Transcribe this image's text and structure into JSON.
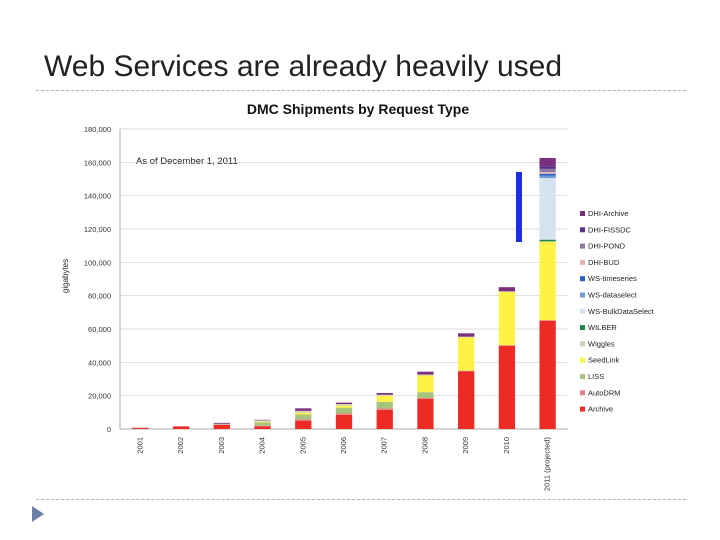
{
  "slide": {
    "title": "Web Services are already heavily used"
  },
  "chart_data": {
    "type": "bar",
    "stacked": true,
    "title": "DMC Shipments by Request Type",
    "annotation": "As of December 1, 2011",
    "ylabel": "gigabytes",
    "xlabel": "",
    "ylim": [
      0,
      180000
    ],
    "yticks": [
      "0",
      "20,000",
      "40,000",
      "60,000",
      "80,000",
      "100,000",
      "120,000",
      "140,000",
      "160,000",
      "180,000"
    ],
    "categories": [
      "2001",
      "2002",
      "2003",
      "2004",
      "2005",
      "2006",
      "2007",
      "2008",
      "2009",
      "2010",
      "2011 (projected)"
    ],
    "legend_position": "right",
    "series": [
      {
        "name": "Archive",
        "color": "#ee2a24",
        "values": [
          700,
          1500,
          2500,
          1500,
          5000,
          8500,
          11500,
          18000,
          34500,
          50000,
          65000
        ]
      },
      {
        "name": "AutoDRM",
        "color": "#e8808f",
        "values": [
          100,
          200,
          300,
          500,
          700,
          800,
          800,
          600,
          500,
          300,
          300
        ]
      },
      {
        "name": "LISS",
        "color": "#a8c47c",
        "values": [
          0,
          0,
          400,
          2000,
          3000,
          3500,
          4000,
          3500,
          0,
          0,
          0
        ]
      },
      {
        "name": "SeedLink",
        "color": "#fff247",
        "values": [
          0,
          0,
          0,
          400,
          1000,
          1200,
          3500,
          10000,
          20000,
          32000,
          47000
        ]
      },
      {
        "name": "Wiggles",
        "color": "#d3d0b2",
        "values": [
          0,
          0,
          0,
          800,
          1200,
          1000,
          800,
          600,
          400,
          300,
          300
        ]
      },
      {
        "name": "WILBER",
        "color": "#1b8a3c",
        "values": [
          0,
          0,
          0,
          0,
          0,
          0,
          0,
          0,
          0,
          0,
          1000
        ]
      },
      {
        "name": "WS-BulkDataSelect",
        "color": "#d6e2ef",
        "values": [
          0,
          0,
          0,
          0,
          0,
          0,
          0,
          0,
          0,
          0,
          37000
        ]
      },
      {
        "name": "WS-dataselect",
        "color": "#6d9bd3",
        "values": [
          0,
          0,
          0,
          0,
          0,
          0,
          0,
          0,
          0,
          0,
          1500
        ]
      },
      {
        "name": "WS-timeseries",
        "color": "#2f5fc4",
        "values": [
          0,
          0,
          0,
          0,
          0,
          0,
          0,
          0,
          0,
          0,
          1000
        ]
      },
      {
        "name": "DHI-BUD",
        "color": "#e3b2b2",
        "values": [
          0,
          0,
          0,
          0,
          0,
          0,
          0,
          0,
          0,
          0,
          1000
        ]
      },
      {
        "name": "DHI-POND",
        "color": "#8e7aa5",
        "values": [
          0,
          0,
          0,
          0,
          0,
          0,
          0,
          0,
          0,
          0,
          2000
        ]
      },
      {
        "name": "DHI-FISSDC",
        "color": "#5a2d8a",
        "values": [
          0,
          0,
          0,
          0,
          0,
          0,
          0,
          0,
          0,
          0,
          1500
        ]
      },
      {
        "name": "DHI-Archive",
        "color": "#7a2e7e",
        "values": [
          0,
          0,
          500,
          300,
          1500,
          800,
          1000,
          1700,
          2000,
          2500,
          5000
        ]
      }
    ]
  }
}
